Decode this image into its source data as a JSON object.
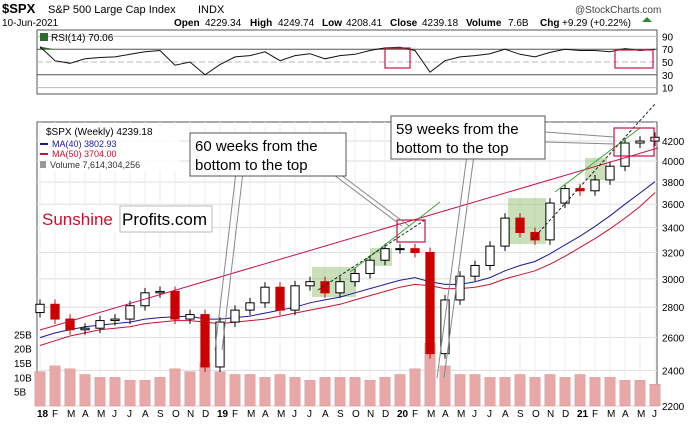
{
  "header": {
    "symbol": "$SPX",
    "name": "S&P 500 Large Cap Index",
    "exchange": "INDX",
    "date": "10-Jun-2021",
    "open_label": "Open",
    "open": "4229.34",
    "high_label": "High",
    "high": "4249.74",
    "low_label": "Low",
    "low": "4208.41",
    "close_label": "Close",
    "close": "4239.18",
    "volume_label": "Volume",
    "volume": "7.6B",
    "chg_label": "Chg",
    "chg": "+9.29 (+0.22%)",
    "watermark": "@StockCharts.com"
  },
  "colors": {
    "up": "#000000",
    "down": "#cc0000",
    "ma40": "#1a1a99",
    "ma50": "#cc1133",
    "trend": "#cc1144",
    "green_line": "#33aa33",
    "box_fill": "#88bb66",
    "vol": "#e8a8a8",
    "rsi_fill": "#2e6b2e",
    "highlight": "#cc1144"
  },
  "rsi_panel": {
    "label": "RSI(14) 70.06",
    "ticks": [
      "90",
      "70",
      "50",
      "30",
      "10"
    ]
  },
  "legend": {
    "series": "$SPX (Weekly) 4239.18",
    "ma40": "MA(40) 3802.93",
    "ma50": "MA(50) 3704.00",
    "volume": "Volume 7,614,304,256"
  },
  "annotations": {
    "a1_line1": "60 weeks from the",
    "a1_line2": "bottom to the top",
    "a2_line1": "59 weeks from the",
    "a2_line2": "bottom to the top",
    "brand_red": "Sunshine",
    "brand_black": "Profits.com"
  },
  "chart_data": {
    "type": "line",
    "title": "$SPX S&P 500 Large Cap Index INDX",
    "x": [
      "2018-01",
      "2018-02",
      "2018-03",
      "2018-04",
      "2018-05",
      "2018-06",
      "2018-07",
      "2018-08",
      "2018-09",
      "2018-10",
      "2018-11",
      "2018-12",
      "2019-01",
      "2019-02",
      "2019-03",
      "2019-04",
      "2019-05",
      "2019-06",
      "2019-07",
      "2019-08",
      "2019-09",
      "2019-10",
      "2019-11",
      "2019-12",
      "2020-01",
      "2020-02",
      "2020-03",
      "2020-04",
      "2020-05",
      "2020-06",
      "2020-07",
      "2020-08",
      "2020-09",
      "2020-10",
      "2020-11",
      "2020-12",
      "2021-01",
      "2021-02",
      "2021-03",
      "2021-04",
      "2021-05",
      "2021-06"
    ],
    "series": [
      {
        "name": "$SPX (Weekly)",
        "values": [
          2820,
          2720,
          2650,
          2660,
          2710,
          2720,
          2810,
          2900,
          2910,
          2720,
          2750,
          2420,
          2700,
          2780,
          2830,
          2940,
          2780,
          2950,
          2980,
          2900,
          2980,
          3040,
          3140,
          3230,
          3230,
          3200,
          2500,
          2850,
          3020,
          3100,
          3250,
          3480,
          3360,
          3300,
          3610,
          3740,
          3720,
          3820,
          3950,
          4180,
          4200,
          4239
        ]
      },
      {
        "name": "MA(40)",
        "values": [
          2600,
          2630,
          2650,
          2670,
          2680,
          2690,
          2700,
          2720,
          2730,
          2735,
          2740,
          2720,
          2720,
          2730,
          2740,
          2760,
          2780,
          2800,
          2830,
          2850,
          2870,
          2900,
          2930,
          2960,
          2990,
          3010,
          2980,
          2960,
          2960,
          2980,
          3010,
          3060,
          3100,
          3130,
          3190,
          3260,
          3330,
          3410,
          3500,
          3600,
          3700,
          3803
        ]
      },
      {
        "name": "MA(50)",
        "values": [
          2550,
          2580,
          2610,
          2630,
          2650,
          2660,
          2670,
          2690,
          2700,
          2710,
          2710,
          2700,
          2690,
          2700,
          2710,
          2720,
          2740,
          2760,
          2780,
          2800,
          2820,
          2850,
          2880,
          2910,
          2940,
          2960,
          2950,
          2930,
          2930,
          2940,
          2960,
          3000,
          3030,
          3060,
          3110,
          3170,
          3240,
          3310,
          3390,
          3480,
          3580,
          3704
        ]
      },
      {
        "name": "RSI(14)",
        "values": [
          74,
          52,
          48,
          55,
          57,
          58,
          62,
          66,
          68,
          45,
          50,
          30,
          46,
          58,
          60,
          66,
          52,
          60,
          63,
          55,
          60,
          62,
          68,
          72,
          73,
          68,
          34,
          52,
          58,
          60,
          63,
          70,
          62,
          58,
          65,
          70,
          68,
          68,
          66,
          71,
          68,
          70
        ]
      }
    ],
    "volume": [
      12,
      14,
      13,
      11,
      10,
      10,
      9,
      9,
      10,
      13,
      12,
      15,
      12,
      11,
      11,
      10,
      11,
      10,
      9,
      10,
      10,
      10,
      9,
      10,
      11,
      13,
      22,
      14,
      11,
      11,
      10,
      10,
      11,
      10,
      11,
      10,
      11,
      10,
      10,
      9,
      9,
      7.6
    ],
    "volume_unit": "B",
    "ylim": [
      2200,
      4400
    ],
    "yscale": "log",
    "y_ticks": [
      2200,
      2400,
      2600,
      2800,
      3000,
      3200,
      3400,
      3600,
      3800,
      4000,
      4200
    ],
    "vol_ticks": [
      "25B",
      "20B",
      "15B",
      "10B",
      "5B"
    ],
    "x_tick_labels": [
      "18",
      "F",
      "M",
      "A",
      "M",
      "J",
      "J",
      "A",
      "S",
      "O",
      "N",
      "D",
      "19",
      "F",
      "M",
      "A",
      "M",
      "J",
      "J",
      "A",
      "S",
      "O",
      "N",
      "D",
      "20",
      "F",
      "M",
      "A",
      "M",
      "J",
      "J",
      "A",
      "S",
      "O",
      "N",
      "D",
      "21",
      "F",
      "M",
      "A",
      "M",
      "J"
    ],
    "grid": true,
    "legend_position": "top-left"
  }
}
